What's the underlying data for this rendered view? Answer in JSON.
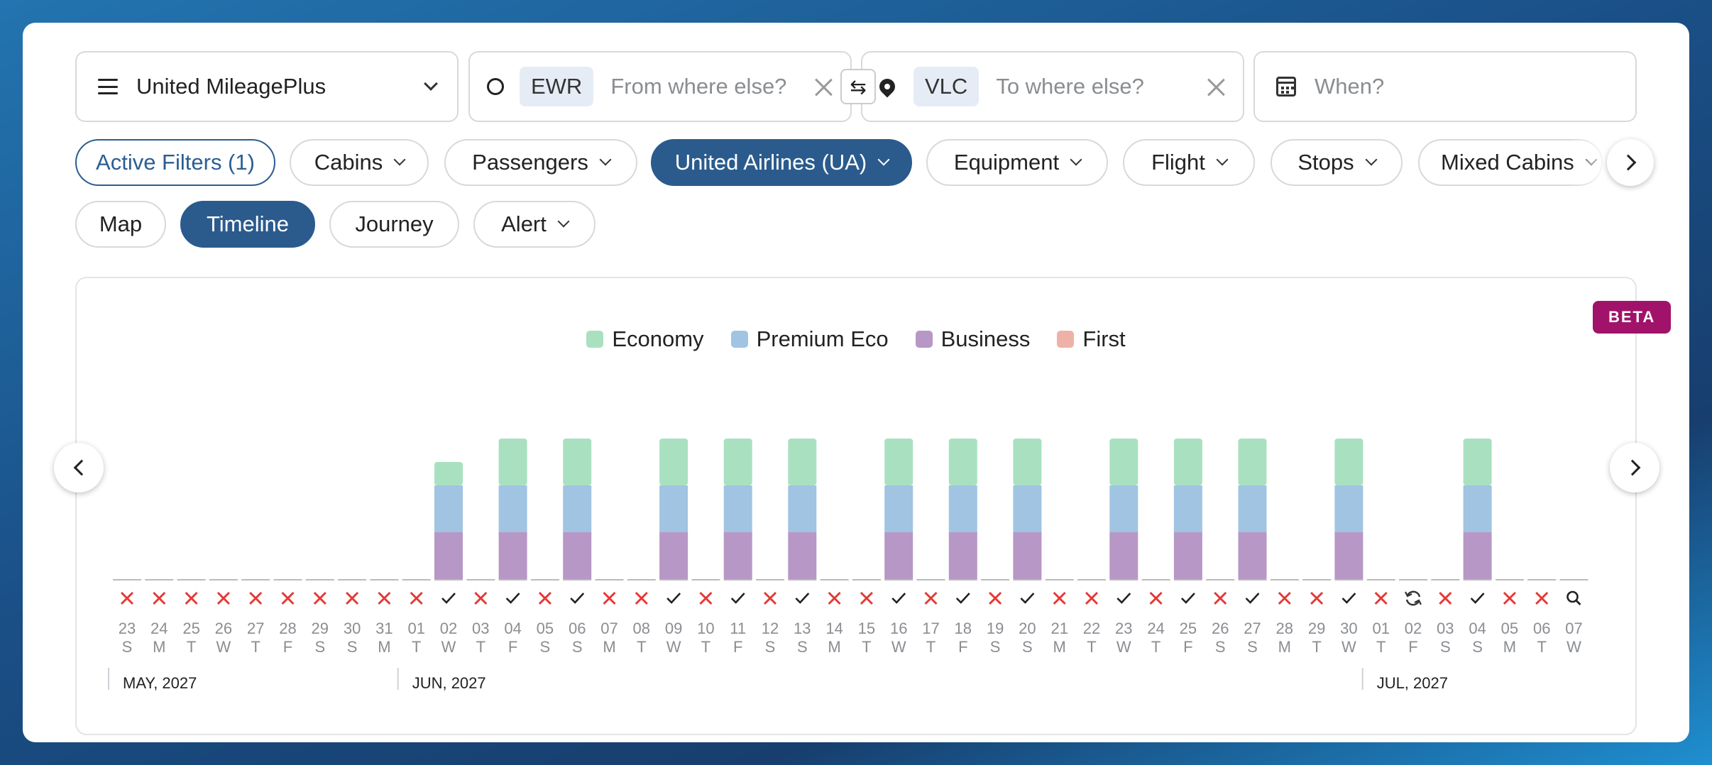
{
  "search": {
    "program": "United MileagePlus",
    "origin_code": "EWR",
    "origin_placeholder": "From where else?",
    "swap_symbol": "⇆",
    "destination_code": "VLC",
    "destination_placeholder": "To where else?",
    "date_placeholder": "When?"
  },
  "filters": [
    {
      "label": "Active Filters (1)",
      "style": "active"
    },
    {
      "label": "Cabins",
      "style": "dropdown"
    },
    {
      "label": "Passengers",
      "style": "dropdown"
    },
    {
      "label": "United Airlines (UA)",
      "style": "selected"
    },
    {
      "label": "Equipment",
      "style": "dropdown"
    },
    {
      "label": "Flight",
      "style": "dropdown"
    },
    {
      "label": "Stops",
      "style": "dropdown"
    },
    {
      "label": "Mixed Cabins",
      "style": "dropdown"
    }
  ],
  "views": [
    {
      "label": "Map",
      "style": "plain"
    },
    {
      "label": "Timeline",
      "style": "selected"
    },
    {
      "label": "Journey",
      "style": "plain"
    },
    {
      "label": "Alert",
      "style": "dropdown"
    }
  ],
  "badge": "BETA",
  "colors": {
    "economy": "#a9e1c0",
    "premium": "#a0c4e2",
    "business": "#b797c6",
    "first": "#efb1a7",
    "selected": "#2b5b8d",
    "unavailable": "#e53935"
  },
  "chart_data": {
    "type": "bar",
    "stacked": true,
    "legend": [
      "Economy",
      "Premium Eco",
      "Business",
      "First"
    ],
    "categories": [
      "23",
      "24",
      "25",
      "26",
      "27",
      "28",
      "29",
      "30",
      "31",
      "01",
      "02",
      "03",
      "04",
      "05",
      "06",
      "07",
      "08",
      "09",
      "10",
      "11",
      "12",
      "13",
      "14",
      "15",
      "16",
      "17",
      "18",
      "19",
      "20",
      "21",
      "22",
      "23",
      "24",
      "25",
      "26",
      "27",
      "28",
      "29",
      "30",
      "01",
      "02",
      "03",
      "04",
      "05",
      "06",
      "07"
    ],
    "weekdays": [
      "S",
      "M",
      "T",
      "W",
      "T",
      "F",
      "S",
      "S",
      "M",
      "T",
      "W",
      "T",
      "F",
      "S",
      "S",
      "M",
      "T",
      "W",
      "T",
      "F",
      "S",
      "S",
      "M",
      "T",
      "W",
      "T",
      "F",
      "S",
      "S",
      "M",
      "T",
      "W",
      "T",
      "F",
      "S",
      "S",
      "M",
      "T",
      "W",
      "T",
      "F",
      "S",
      "S",
      "M",
      "T",
      "W"
    ],
    "status": [
      "x",
      "x",
      "x",
      "x",
      "x",
      "x",
      "x",
      "x",
      "x",
      "x",
      "check",
      "x",
      "check",
      "x",
      "check",
      "x",
      "x",
      "check",
      "x",
      "check",
      "x",
      "check",
      "x",
      "x",
      "check",
      "x",
      "check",
      "x",
      "check",
      "x",
      "x",
      "check",
      "x",
      "check",
      "x",
      "check",
      "x",
      "x",
      "check",
      "x",
      "refresh",
      "x",
      "check",
      "x",
      "x",
      "search"
    ],
    "series": [
      {
        "name": "Economy",
        "values": [
          0,
          0,
          0,
          0,
          0,
          0,
          0,
          0,
          0,
          0,
          0.5,
          0,
          1,
          0,
          1,
          0,
          0,
          1,
          0,
          1,
          0,
          1,
          0,
          0,
          1,
          0,
          1,
          0,
          1,
          0,
          0,
          1,
          0,
          1,
          0,
          1,
          0,
          0,
          1,
          0,
          0,
          0,
          1,
          0,
          0,
          0
        ]
      },
      {
        "name": "Premium Eco",
        "values": [
          0,
          0,
          0,
          0,
          0,
          0,
          0,
          0,
          0,
          0,
          1,
          0,
          1,
          0,
          1,
          0,
          0,
          1,
          0,
          1,
          0,
          1,
          0,
          0,
          1,
          0,
          1,
          0,
          1,
          0,
          0,
          1,
          0,
          1,
          0,
          1,
          0,
          0,
          1,
          0,
          0,
          0,
          1,
          0,
          0,
          0
        ]
      },
      {
        "name": "Business",
        "values": [
          0,
          0,
          0,
          0,
          0,
          0,
          0,
          0,
          0,
          0,
          1,
          0,
          1,
          0,
          1,
          0,
          0,
          1,
          0,
          1,
          0,
          1,
          0,
          0,
          1,
          0,
          1,
          0,
          1,
          0,
          0,
          1,
          0,
          1,
          0,
          1,
          0,
          0,
          1,
          0,
          0,
          0,
          1,
          0,
          0,
          0
        ]
      },
      {
        "name": "First",
        "values": [
          0,
          0,
          0,
          0,
          0,
          0,
          0,
          0,
          0,
          0,
          0,
          0,
          0,
          0,
          0,
          0,
          0,
          0,
          0,
          0,
          0,
          0,
          0,
          0,
          0,
          0,
          0,
          0,
          0,
          0,
          0,
          0,
          0,
          0,
          0,
          0,
          0,
          0,
          0,
          0,
          0,
          0,
          0,
          0,
          0,
          0
        ]
      }
    ],
    "months": [
      {
        "label": "MAY, 2027",
        "start_index": 0
      },
      {
        "label": "JUN, 2027",
        "start_index": 9
      },
      {
        "label": "JUL, 2027",
        "start_index": 39
      }
    ]
  }
}
